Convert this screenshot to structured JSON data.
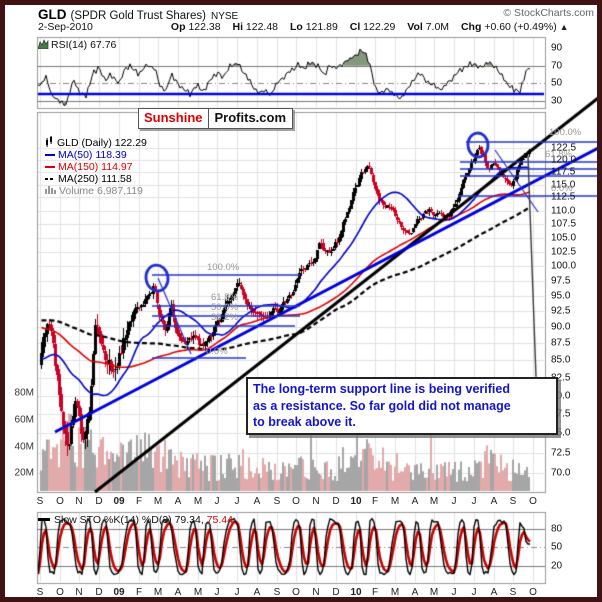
{
  "header": {
    "symbol": "GLD",
    "name": "(SPDR Gold Trust Shares)",
    "exchange": "NYSE",
    "copyright": "© StockCharts.com",
    "date": "2-Sep-2010",
    "quote": {
      "op_label": "Op",
      "op": "122.38",
      "hi_label": "Hi",
      "hi": "122.48",
      "lo_label": "Lo",
      "lo": "121.89",
      "cl_label": "Cl",
      "cl": "122.29",
      "vol_label": "Vol",
      "vol": "7.0M",
      "chg_label": "Chg",
      "chg": "+0.60 (+0.49%)",
      "direction": "▲"
    }
  },
  "rsi_panel": {
    "label": "RSI(14) 67.76"
  },
  "watermark": {
    "brand_red": "Sunshine",
    "brand_black": "Profits.com"
  },
  "legend": {
    "items": [
      {
        "label": "GLD (Daily) 122.29"
      },
      {
        "label": "MA(50) 118.39"
      },
      {
        "label": "MA(150) 114.97"
      },
      {
        "label": "MA(250) 111.58"
      },
      {
        "label": "Volume 6,987,119"
      }
    ]
  },
  "annotation": {
    "lines": [
      "The long-term support line is being verified",
      "as a resistance. So far gold did not manage",
      "to break above it."
    ]
  },
  "sto_panel": {
    "label_black": "Slow STO %K(14) %D(3) 79.34,",
    "label_red": "75.44"
  },
  "colors": {
    "border": "#401212",
    "candle_up": "#000000",
    "candle_down": "#cc0022",
    "ma50": "#0000cc",
    "ma150": "#dd0000",
    "ma250": "#000000",
    "trend_black": "#000000",
    "trend_blue": "#0000dd",
    "fib_blue": "#2233cc",
    "rsi_fill": "#85987d",
    "rsi_signal_blue": "#0000dd",
    "volume_up": "#a6a6a6",
    "volume_down": "#e2aaaa",
    "sto_k": "#000000",
    "sto_d": "#cc0000",
    "annotation_text": "#1414cc"
  },
  "chart_data": {
    "type": "candlestick",
    "symbol": "GLD",
    "period": "Daily",
    "yscale": "log",
    "price_axis_ticks": [
      122.5,
      120.0,
      117.5,
      115.0,
      112.5,
      110.0,
      107.5,
      105.0,
      102.5,
      100.0,
      97.5,
      95.0,
      92.5,
      90.0,
      87.5,
      85.0,
      82.5,
      80.0,
      77.5,
      75.0,
      72.5,
      70.0
    ],
    "volume_axis_ticks": [
      "80M",
      "60M",
      "40M",
      "20M"
    ],
    "months": [
      "S",
      "O",
      "N",
      "D",
      "09",
      "F",
      "M",
      "A",
      "M",
      "J",
      "J",
      "A",
      "S",
      "O",
      "N",
      "D",
      "10",
      "F",
      "M",
      "A",
      "M",
      "J",
      "J",
      "A",
      "S",
      "O"
    ],
    "bold_months": [
      "09",
      "10"
    ],
    "last_quote": {
      "open": 122.38,
      "high": 122.48,
      "low": 121.89,
      "close": 122.29,
      "volume": "7.0M",
      "change": "+0.60 (+0.49%)"
    },
    "ma_values": {
      "ma50": 118.39,
      "ma150": 114.97,
      "ma250": 111.58
    },
    "rsi": {
      "last": 67.76,
      "ticks": [
        90,
        70,
        50,
        30
      ],
      "overbought": 70,
      "oversold": 30,
      "signal_level": 38,
      "anchors": [
        [
          0,
          48
        ],
        [
          0.3,
          58
        ],
        [
          0.6,
          36
        ],
        [
          1,
          30
        ],
        [
          1.3,
          24
        ],
        [
          1.7,
          54
        ],
        [
          2,
          40
        ],
        [
          2.3,
          34
        ],
        [
          2.7,
          62
        ],
        [
          3,
          68
        ],
        [
          3.3,
          54
        ],
        [
          3.6,
          60
        ],
        [
          4,
          50
        ],
        [
          4.3,
          66
        ],
        [
          4.6,
          71
        ],
        [
          5,
          60
        ],
        [
          5.35,
          71
        ],
        [
          5.8,
          67
        ],
        [
          6.1,
          47
        ],
        [
          6.4,
          41
        ],
        [
          6.65,
          60
        ],
        [
          7,
          50
        ],
        [
          7.3,
          43
        ],
        [
          7.6,
          38
        ],
        [
          8,
          48
        ],
        [
          8.3,
          41
        ],
        [
          8.6,
          54
        ],
        [
          9,
          62
        ],
        [
          9.3,
          57
        ],
        [
          9.6,
          69
        ],
        [
          10.1,
          72
        ],
        [
          10.4,
          60
        ],
        [
          10.8,
          46
        ],
        [
          11.1,
          39
        ],
        [
          11.4,
          43
        ],
        [
          11.7,
          36
        ],
        [
          12,
          50
        ],
        [
          12.3,
          56
        ],
        [
          12.7,
          64
        ],
        [
          13.1,
          71
        ],
        [
          13.4,
          67
        ],
        [
          13.7,
          73
        ],
        [
          14.1,
          69
        ],
        [
          14.4,
          59
        ],
        [
          14.7,
          71
        ],
        [
          15,
          67
        ],
        [
          15.4,
          73
        ],
        [
          15.8,
          79
        ],
        [
          16.1,
          84
        ],
        [
          16.4,
          87
        ],
        [
          16.7,
          74
        ],
        [
          17,
          45
        ],
        [
          17.3,
          39
        ],
        [
          17.6,
          44
        ],
        [
          18,
          36
        ],
        [
          18.3,
          33
        ],
        [
          18.7,
          46
        ],
        [
          19,
          56
        ],
        [
          19.3,
          61
        ],
        [
          19.6,
          52
        ],
        [
          20,
          47
        ],
        [
          20.3,
          43
        ],
        [
          20.7,
          51
        ],
        [
          21,
          58
        ],
        [
          21.3,
          64
        ],
        [
          21.7,
          70
        ],
        [
          22,
          73
        ],
        [
          22.3,
          67
        ],
        [
          22.7,
          74
        ],
        [
          23,
          70
        ],
        [
          23.3,
          62
        ],
        [
          23.7,
          50
        ],
        [
          24,
          43
        ],
        [
          24.3,
          40
        ],
        [
          24.6,
          57
        ],
        [
          24.85,
          67.8
        ]
      ]
    },
    "sto": {
      "k_last": 79.34,
      "d_last": 75.44,
      "ticks": [
        80,
        50,
        20
      ]
    },
    "price_anchors_month_price": [
      [
        -12.5,
        89
      ],
      [
        -9,
        94
      ],
      [
        -6,
        96.5
      ],
      [
        -4,
        90
      ],
      [
        -2,
        86
      ],
      [
        -0.5,
        84.5
      ],
      [
        0,
        84
      ],
      [
        0.35,
        91
      ],
      [
        0.7,
        87
      ],
      [
        1.1,
        77.5
      ],
      [
        1.5,
        73.5
      ],
      [
        1.8,
        79
      ],
      [
        2.15,
        74
      ],
      [
        2.5,
        77.5
      ],
      [
        2.85,
        91.5
      ],
      [
        3.2,
        85.5
      ],
      [
        3.6,
        84
      ],
      [
        4,
        86
      ],
      [
        4.4,
        89
      ],
      [
        4.8,
        92.5
      ],
      [
        5.3,
        94
      ],
      [
        5.8,
        96.8
      ],
      [
        6.1,
        91.5
      ],
      [
        6.4,
        89.5
      ],
      [
        6.65,
        93
      ],
      [
        6.9,
        89.5
      ],
      [
        7.3,
        87.5
      ],
      [
        7.8,
        88.5
      ],
      [
        8.3,
        86.8
      ],
      [
        8.8,
        89
      ],
      [
        9.3,
        92.5
      ],
      [
        9.8,
        95.5
      ],
      [
        10.1,
        97
      ],
      [
        10.5,
        94.5
      ],
      [
        11,
        91.5
      ],
      [
        11.4,
        90.7
      ],
      [
        11.9,
        92.5
      ],
      [
        12.4,
        93.5
      ],
      [
        12.8,
        95.5
      ],
      [
        13.3,
        99.5
      ],
      [
        13.8,
        101
      ],
      [
        14.2,
        103.8
      ],
      [
        14.6,
        102
      ],
      [
        15.1,
        104.5
      ],
      [
        15.6,
        110
      ],
      [
        16,
        114.5
      ],
      [
        16.35,
        117.5
      ],
      [
        16.7,
        119.2
      ],
      [
        17,
        113.5
      ],
      [
        17.4,
        111
      ],
      [
        17.9,
        109.8
      ],
      [
        18.4,
        107
      ],
      [
        18.8,
        105.2
      ],
      [
        19.3,
        108.5
      ],
      [
        19.8,
        109.8
      ],
      [
        20.3,
        109.2
      ],
      [
        20.7,
        108
      ],
      [
        21.1,
        111.5
      ],
      [
        21.5,
        116
      ],
      [
        21.9,
        119
      ],
      [
        22.2,
        122.5
      ],
      [
        22.5,
        120.5
      ],
      [
        22.8,
        117.8
      ],
      [
        23.1,
        119.3
      ],
      [
        23.4,
        116.8
      ],
      [
        23.85,
        113.8
      ],
      [
        24.2,
        117.5
      ],
      [
        24.5,
        120.5
      ],
      [
        24.85,
        122.3
      ]
    ],
    "volume_anchors_month_millions": [
      [
        0,
        26
      ],
      [
        0.8,
        34
      ],
      [
        1.4,
        44
      ],
      [
        2,
        32
      ],
      [
        2.6,
        30
      ],
      [
        3.2,
        26
      ],
      [
        4,
        22
      ],
      [
        4.8,
        28
      ],
      [
        5.6,
        34
      ],
      [
        6.2,
        26
      ],
      [
        7,
        20
      ],
      [
        8,
        18
      ],
      [
        9,
        17
      ],
      [
        10,
        21
      ],
      [
        11,
        17
      ],
      [
        12,
        14
      ],
      [
        13,
        16
      ],
      [
        14,
        18
      ],
      [
        15,
        16
      ],
      [
        16,
        22
      ],
      [
        16.8,
        26
      ],
      [
        17.5,
        20
      ],
      [
        18.4,
        17
      ],
      [
        19.2,
        15
      ],
      [
        20,
        13
      ],
      [
        21,
        15
      ],
      [
        22,
        19
      ],
      [
        22.6,
        22
      ],
      [
        23.4,
        18
      ],
      [
        24.2,
        16
      ],
      [
        24.85,
        13
      ]
    ],
    "fib_retracements": [
      {
        "name": "feb-2009-top",
        "labels": [
          "100.0%",
          "61.8%",
          "50.0%",
          "38.2%",
          "0.0%"
        ],
        "high": 98.0,
        "low": 85.0
      },
      {
        "name": "jun-2010-top",
        "labels": [
          "100.0%",
          "61.8%",
          "0.0%"
        ],
        "high": 123.4,
        "low": 112.8
      }
    ],
    "trendlines": [
      {
        "name": "long-term-support-line",
        "color": "#000000"
      },
      {
        "name": "rising-support-line",
        "color": "#0000dd"
      }
    ]
  }
}
